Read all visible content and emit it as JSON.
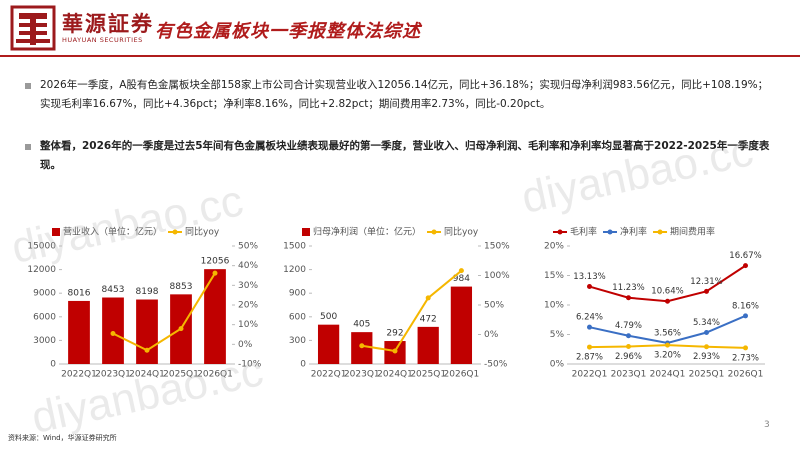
{
  "header": {
    "logo": "華源証券",
    "logo_en": "HUAYUAN SECURITIES",
    "title": "有色金属板块一季报整体法综述"
  },
  "bullets": [
    "2026年一季度，A股有色金属板块全部158家上市公司合计实现营业收入12056.14亿元，同比+36.18%；实现归母净利润983.56亿元，同比+108.19%；实现毛利率16.67%，同比+4.36pct；净利率8.16%，同比+2.82pct；期间费用率2.73%，同比-0.20pct。",
    "整体看，2026年的一季度是过去5年间有色金属板块业绩表现最好的第一季度，营业收入、归母净利润、毛利率和净利率均显著高于2022-2025年一季度表现。"
  ],
  "chart_data": [
    {
      "type": "bar",
      "categories": [
        "2022Q1",
        "2023Q1",
        "2024Q1",
        "2025Q1",
        "2026Q1"
      ],
      "series": [
        {
          "name": "营业收入（单位：亿元）",
          "color": "#c00000",
          "values": [
            8016,
            8453,
            8198,
            8853,
            12056
          ]
        },
        {
          "name": "同比yoy",
          "color": "#f5b700",
          "axis": "y2",
          "values": [
            null,
            5.5,
            -3,
            8,
            36.18
          ]
        }
      ],
      "ylim": [
        0,
        15000
      ],
      "yticks": [
        0,
        3000,
        6000,
        9000,
        12000,
        15000
      ],
      "y2lim": [
        -10,
        50
      ],
      "y2ticks": [
        {
          "value": -10,
          "label": "-10%"
        },
        {
          "value": 0,
          "label": "0%"
        },
        {
          "value": 10,
          "label": "10%"
        },
        {
          "value": 20,
          "label": "20%"
        },
        {
          "value": 30,
          "label": "30%"
        },
        {
          "value": 40,
          "label": "40%"
        },
        {
          "value": 50,
          "label": "50%"
        }
      ],
      "grid": false
    },
    {
      "type": "bar",
      "categories": [
        "2022Q1",
        "2023Q1",
        "2024Q1",
        "2025Q1",
        "2026Q1"
      ],
      "series": [
        {
          "name": "归母净利润（单位：亿元）",
          "color": "#c00000",
          "values": [
            500,
            405,
            292,
            472,
            984
          ]
        },
        {
          "name": "同比yoy",
          "color": "#f5b700",
          "axis": "y2",
          "values": [
            null,
            -19,
            -28,
            62,
            108.19
          ]
        }
      ],
      "ylim": [
        0,
        1500
      ],
      "yticks": [
        0,
        300,
        600,
        900,
        1200,
        1500
      ],
      "y2lim": [
        -50,
        150
      ],
      "y2ticks": [
        {
          "value": -50,
          "label": "-50%"
        },
        {
          "value": 0,
          "label": "0%"
        },
        {
          "value": 50,
          "label": "50%"
        },
        {
          "value": 100,
          "label": "100%"
        },
        {
          "value": 150,
          "label": "150%"
        }
      ],
      "grid": false
    },
    {
      "type": "line",
      "categories": [
        "2022Q1",
        "2023Q1",
        "2024Q1",
        "2025Q1",
        "2026Q1"
      ],
      "series": [
        {
          "name": "毛利率",
          "color": "#c00000",
          "values": [
            13.13,
            11.23,
            10.64,
            12.31,
            16.67
          ],
          "value_labels": [
            "13.13%",
            "11.23%",
            "10.64%",
            "12.31%",
            "16.67%"
          ]
        },
        {
          "name": "净利率",
          "color": "#3a6fc4",
          "values": [
            6.24,
            4.79,
            3.56,
            5.34,
            8.16
          ],
          "value_labels": [
            "6.24%",
            "4.79%",
            "3.56%",
            "5.34%",
            "8.16%"
          ]
        },
        {
          "name": "期间费用率",
          "color": "#f5b700",
          "values": [
            2.87,
            2.96,
            3.2,
            2.93,
            2.73
          ],
          "value_labels": [
            "2.87%",
            "2.96%",
            "3.20%",
            "2.93%",
            "2.73%"
          ]
        }
      ],
      "ylim": [
        0,
        20
      ],
      "yticks": [
        {
          "value": 0,
          "label": "0%"
        },
        {
          "value": 5,
          "label": "5%"
        },
        {
          "value": 10,
          "label": "10%"
        },
        {
          "value": 15,
          "label": "15%"
        },
        {
          "value": 20,
          "label": "20%"
        }
      ],
      "grid": false
    }
  ],
  "footer": {
    "source": "资料来源：Wind，华源证券研究所",
    "page": "3"
  },
  "watermark": "diyanbao.cc"
}
